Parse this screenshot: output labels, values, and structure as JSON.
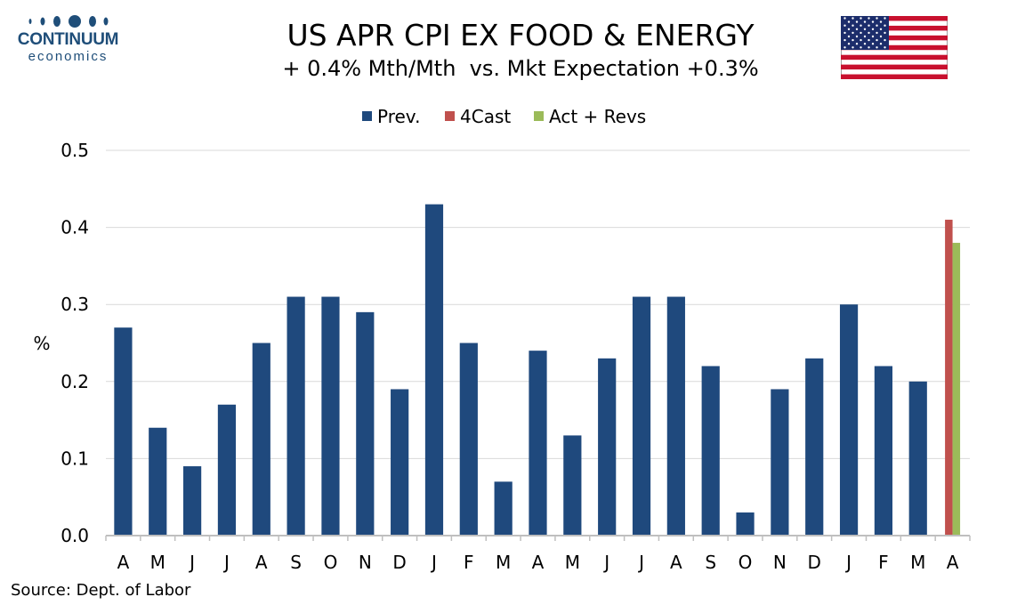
{
  "logo": {
    "word": "CONTINUUM",
    "sub": "economics"
  },
  "header": {
    "title": "US APR CPI EX FOOD & ENERGY",
    "subtitle": "+ 0.4% Mth/Mth  vs. Mkt Expectation +0.3%"
  },
  "flag": {
    "name": "us-flag-icon"
  },
  "source": "Source: Dept. of Labor",
  "colors": {
    "prev": "#1f497d",
    "forecast": "#c0504d",
    "actual": "#9bbb59",
    "grid": "#d9d9d9",
    "axis": "#bfbfbf"
  },
  "chart_data": {
    "type": "bar",
    "categories": [
      "A",
      "M",
      "J",
      "J",
      "A",
      "S",
      "O",
      "N",
      "D",
      "J",
      "F",
      "M",
      "A",
      "M",
      "J",
      "J",
      "A",
      "S",
      "O",
      "N",
      "D",
      "J",
      "F",
      "M",
      "A"
    ],
    "series": [
      {
        "name": "Prev.",
        "values": [
          0.27,
          0.14,
          0.09,
          0.17,
          0.25,
          0.31,
          0.31,
          0.29,
          0.19,
          0.43,
          0.25,
          0.07,
          0.24,
          0.13,
          0.23,
          0.31,
          0.31,
          0.22,
          0.03,
          0.19,
          0.23,
          0.3,
          0.22,
          0.2,
          null
        ]
      },
      {
        "name": "4Cast",
        "values": [
          null,
          null,
          null,
          null,
          null,
          null,
          null,
          null,
          null,
          null,
          null,
          null,
          null,
          null,
          null,
          null,
          null,
          null,
          null,
          null,
          null,
          null,
          null,
          null,
          0.41
        ]
      },
      {
        "name": "Act + Revs",
        "values": [
          null,
          null,
          null,
          null,
          null,
          null,
          null,
          null,
          null,
          null,
          null,
          null,
          null,
          null,
          null,
          null,
          null,
          null,
          null,
          null,
          null,
          null,
          null,
          null,
          0.38
        ]
      }
    ],
    "ylabel": "%",
    "ylim": [
      0,
      0.5
    ],
    "yticks": [
      "0.0",
      "0.1",
      "0.2",
      "0.3",
      "0.4",
      "0.5"
    ],
    "grid": true,
    "legend": "top-center"
  }
}
